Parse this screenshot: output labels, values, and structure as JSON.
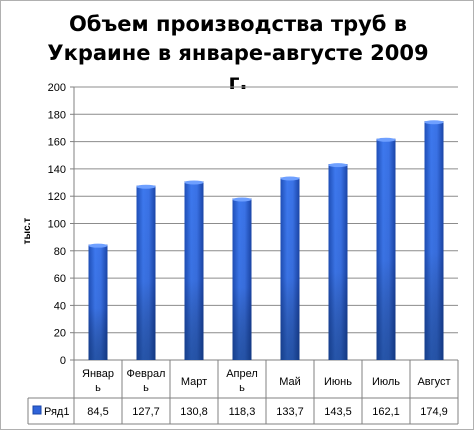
{
  "chart_data": {
    "type": "bar",
    "title_line1": "Объем производства труб в",
    "title_line2": "Украине в январе-августе 2009 г.",
    "ylabel": "тыс.т",
    "ylim": [
      0,
      200
    ],
    "yticks": [
      0,
      20,
      40,
      60,
      80,
      100,
      120,
      140,
      160,
      180,
      200
    ],
    "categories": [
      [
        "Январ",
        "ь"
      ],
      [
        "Феврал",
        "ь"
      ],
      [
        "Март"
      ],
      [
        "Апрел",
        "ь"
      ],
      [
        "Май"
      ],
      [
        "Июнь"
      ],
      [
        "Июль"
      ],
      [
        "Август"
      ]
    ],
    "series": [
      {
        "name": "Ряд1",
        "values": [
          84.5,
          127.7,
          130.8,
          118.3,
          133.7,
          143.5,
          162.1,
          174.9
        ],
        "value_labels": [
          "84,5",
          "127,7",
          "130,8",
          "118,3",
          "133,7",
          "143,5",
          "162,1",
          "174,9"
        ],
        "color": "#2f63d9"
      }
    ],
    "grid": true,
    "legend": "data-table"
  }
}
